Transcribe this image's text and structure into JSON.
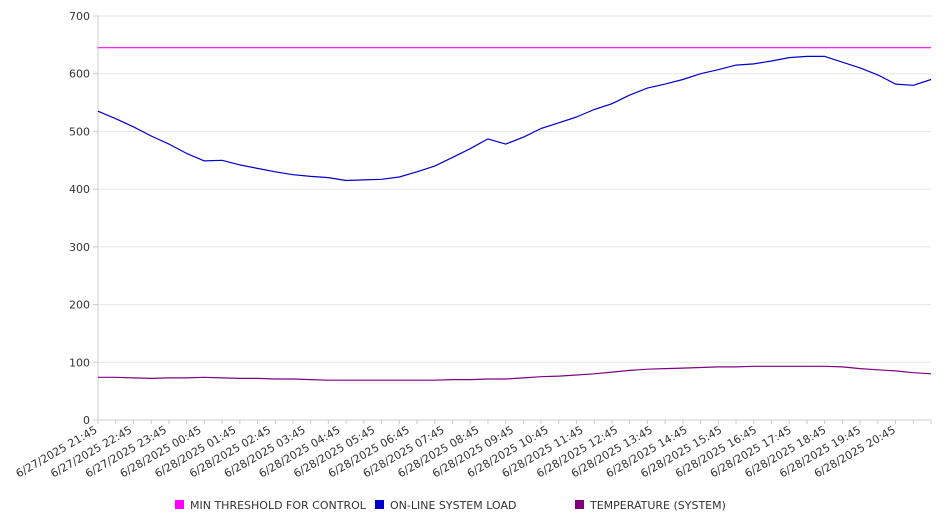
{
  "chart_data": {
    "type": "line",
    "title": "",
    "xlabel": "",
    "ylabel": "",
    "ylim": [
      0,
      700
    ],
    "y_ticks": [
      0,
      100,
      200,
      300,
      400,
      500,
      600,
      700
    ],
    "grid": true,
    "legend_position": "bottom",
    "x_tick_labels": [
      "6/27/2025 21:45",
      "6/27/2025 22:45",
      "6/27/2025 23:45",
      "6/28/2025 00:45",
      "6/28/2025 01:45",
      "6/28/2025 02:45",
      "6/28/2025 03:45",
      "6/28/2025 04:45",
      "6/28/2025 05:45",
      "6/28/2025 06:45",
      "6/28/2025 07:45",
      "6/28/2025 08:45",
      "6/28/2025 09:45",
      "6/28/2025 10:45",
      "6/28/2025 11:45",
      "6/28/2025 12:45",
      "6/28/2025 13:45",
      "6/28/2025 14:45",
      "6/28/2025 15:45",
      "6/28/2025 16:45",
      "6/28/2025 17:45",
      "6/28/2025 18:45",
      "6/28/2025 19:45",
      "6/28/2025 20:45"
    ],
    "x": [
      "6/27/2025 21:45",
      "6/27/2025 22:15",
      "6/27/2025 22:45",
      "6/27/2025 23:15",
      "6/27/2025 23:45",
      "6/28/2025 00:15",
      "6/28/2025 00:45",
      "6/28/2025 01:15",
      "6/28/2025 01:45",
      "6/28/2025 02:15",
      "6/28/2025 02:45",
      "6/28/2025 03:15",
      "6/28/2025 03:45",
      "6/28/2025 04:15",
      "6/28/2025 04:45",
      "6/28/2025 05:15",
      "6/28/2025 05:45",
      "6/28/2025 06:15",
      "6/28/2025 06:45",
      "6/28/2025 07:15",
      "6/28/2025 07:45",
      "6/28/2025 08:15",
      "6/28/2025 08:45",
      "6/28/2025 09:15",
      "6/28/2025 09:45",
      "6/28/2025 10:15",
      "6/28/2025 10:45",
      "6/28/2025 11:15",
      "6/28/2025 11:45",
      "6/28/2025 12:15",
      "6/28/2025 12:45",
      "6/28/2025 13:15",
      "6/28/2025 13:45",
      "6/28/2025 14:15",
      "6/28/2025 14:45",
      "6/28/2025 15:15",
      "6/28/2025 15:45",
      "6/28/2025 16:15",
      "6/28/2025 16:45",
      "6/28/2025 17:15",
      "6/28/2025 17:45",
      "6/28/2025 18:15",
      "6/28/2025 18:45",
      "6/28/2025 19:15",
      "6/28/2025 19:45",
      "6/28/2025 20:15",
      "6/28/2025 20:45",
      "6/28/2025 21:15"
    ],
    "series": [
      {
        "name": "MIN THRESHOLD FOR CONTROL",
        "color": "#ff00ff",
        "values": [
          645,
          645,
          645,
          645,
          645,
          645,
          645,
          645,
          645,
          645,
          645,
          645,
          645,
          645,
          645,
          645,
          645,
          645,
          645,
          645,
          645,
          645,
          645,
          645,
          645,
          645,
          645,
          645,
          645,
          645,
          645,
          645,
          645,
          645,
          645,
          645,
          645,
          645,
          645,
          645,
          645,
          645,
          645,
          645,
          645,
          645,
          645,
          645
        ]
      },
      {
        "name": "ON-LINE SYSTEM LOAD",
        "color": "#0000cc",
        "values": [
          535,
          522,
          508,
          492,
          478,
          462,
          449,
          450,
          442,
          436,
          430,
          425,
          422,
          420,
          415,
          416,
          417,
          421,
          430,
          440,
          455,
          470,
          487,
          478,
          490,
          505,
          515,
          525,
          538,
          548,
          563,
          575,
          582,
          590,
          600,
          607,
          615,
          617,
          622,
          628,
          630,
          630,
          620,
          610,
          598,
          582,
          580,
          590
        ]
      },
      {
        "name": "TEMPERATURE (SYSTEM)",
        "color": "#800080",
        "values": [
          74,
          74,
          73,
          72,
          73,
          73,
          74,
          73,
          72,
          72,
          71,
          71,
          70,
          69,
          69,
          69,
          69,
          69,
          69,
          69,
          70,
          70,
          71,
          71,
          73,
          75,
          76,
          78,
          80,
          83,
          86,
          88,
          89,
          90,
          91,
          92,
          92,
          93,
          93,
          93,
          93,
          93,
          92,
          89,
          87,
          85,
          82,
          80
        ]
      }
    ]
  }
}
